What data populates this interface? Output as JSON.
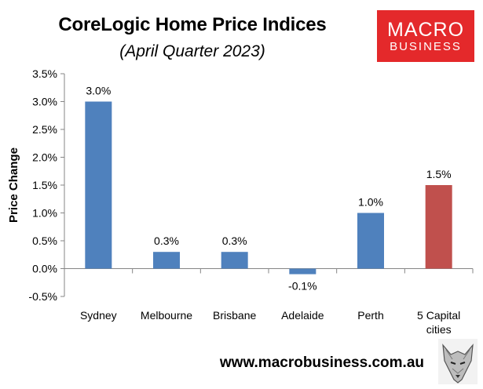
{
  "header": {
    "title": "CoreLogic Home Price Indices",
    "subtitle": "(April Quarter 2023)"
  },
  "logo": {
    "line1": "MACRO",
    "line2": "BUSINESS",
    "color": "#e4292b"
  },
  "footer": {
    "url": "www.macrobusiness.com.au",
    "icon": "wolf-icon"
  },
  "chart_data": {
    "type": "bar",
    "categories": [
      "Sydney",
      "Melbourne",
      "Brisbane",
      "Adelaide",
      "Perth",
      "5 Capital cities"
    ],
    "category_lines": [
      [
        "Sydney"
      ],
      [
        "Melbourne"
      ],
      [
        "Brisbane"
      ],
      [
        "Adelaide"
      ],
      [
        "Perth"
      ],
      [
        "5 Capital",
        "cities"
      ]
    ],
    "values": [
      3.0,
      0.3,
      0.3,
      -0.1,
      1.0,
      1.5
    ],
    "data_labels": [
      "3.0%",
      "0.3%",
      "0.3%",
      "-0.1%",
      "1.0%",
      "1.5%"
    ],
    "bar_colors": [
      "#4f81bd",
      "#4f81bd",
      "#4f81bd",
      "#4f81bd",
      "#4f81bd",
      "#c0504d"
    ],
    "ylabel": "Price Change",
    "ylim": [
      -0.5,
      3.5
    ],
    "yticks": [
      -0.5,
      0.0,
      0.5,
      1.0,
      1.5,
      2.0,
      2.5,
      3.0,
      3.5
    ],
    "ytick_labels": [
      "-0.5%",
      "0.0%",
      "0.5%",
      "1.0%",
      "1.5%",
      "2.0%",
      "2.5%",
      "3.0%",
      "3.5%"
    ],
    "grid": false,
    "legend": "none"
  }
}
